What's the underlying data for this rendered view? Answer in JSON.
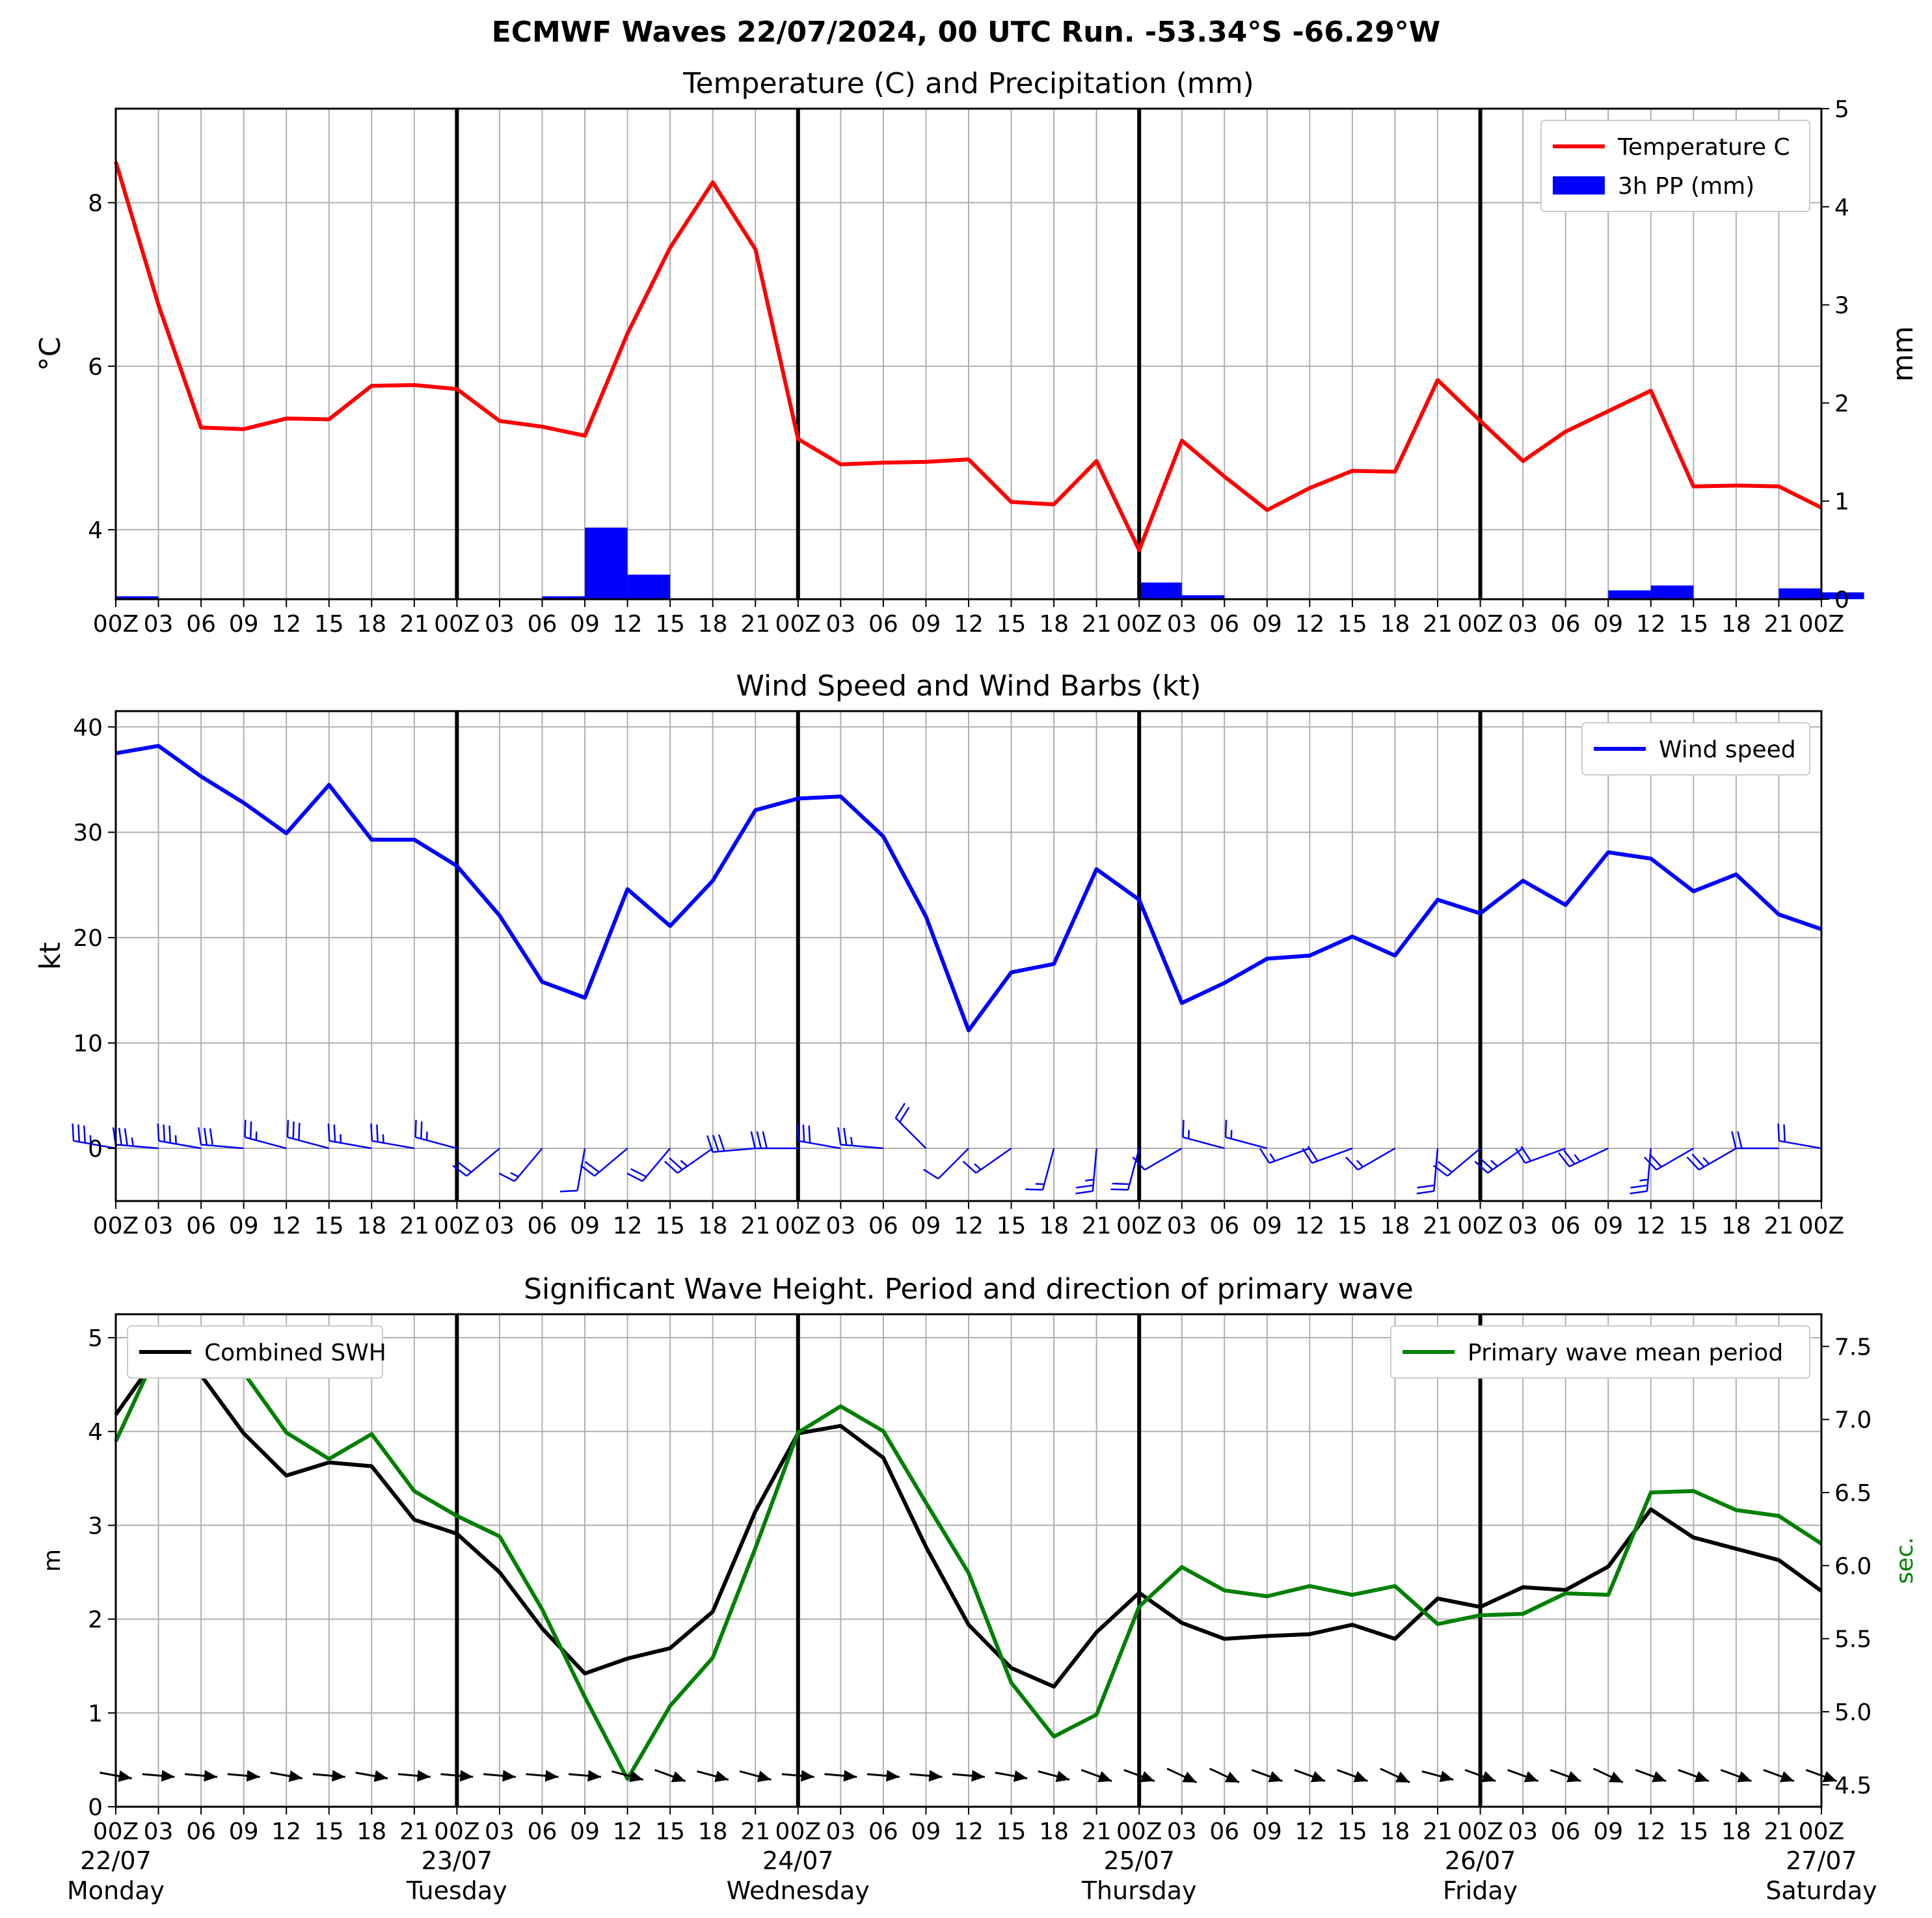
{
  "title": "ECMWF Waves 22/07/2024, 00 UTC Run. -53.34°S -66.29°W",
  "colors": {
    "temperature": "#ff0000",
    "precip": "#0000ff",
    "wind": "#0000ff",
    "swh": "#000000",
    "period": "#008000",
    "grid": "#b0b0b0",
    "day_line": "#000000"
  },
  "time_axis": {
    "tick_labels": [
      "00Z",
      "03",
      "06",
      "09",
      "12",
      "15",
      "18",
      "21",
      "00Z",
      "03",
      "06",
      "09",
      "12",
      "15",
      "18",
      "21",
      "00Z",
      "03",
      "06",
      "09",
      "12",
      "15",
      "18",
      "21",
      "00Z",
      "03",
      "06",
      "09",
      "12",
      "15",
      "18",
      "21",
      "00Z",
      "03",
      "06",
      "09",
      "12",
      "15",
      "18",
      "21",
      "00Z"
    ],
    "day_lines_at_hours": [
      24,
      48,
      72,
      96
    ],
    "dates": [
      {
        "hour": 0,
        "date": "22/07",
        "day": "Monday"
      },
      {
        "hour": 24,
        "date": "23/07",
        "day": "Tuesday"
      },
      {
        "hour": 48,
        "date": "24/07",
        "day": "Wednesday"
      },
      {
        "hour": 72,
        "date": "25/07",
        "day": "Thursday"
      },
      {
        "hour": 96,
        "date": "26/07",
        "day": "Friday"
      },
      {
        "hour": 120,
        "date": "27/07",
        "day": "Saturday"
      }
    ]
  },
  "chart_data": [
    {
      "type": "line",
      "title": "Temperature (C) and Precipitation (mm)",
      "ylabel": "°C",
      "y2label": "mm",
      "ylim": [
        3.15,
        9.15
      ],
      "yticks": [
        4,
        6,
        8
      ],
      "y2lim": [
        0,
        5
      ],
      "y2ticks": [
        0,
        1,
        2,
        3,
        4,
        5
      ],
      "xlim": [
        0,
        120
      ],
      "grid": true,
      "legend_position": "top-right",
      "x": [
        0,
        3,
        6,
        9,
        12,
        15,
        18,
        21,
        24,
        27,
        30,
        33,
        36,
        39,
        42,
        45,
        48,
        51,
        54,
        57,
        60,
        63,
        66,
        69,
        72,
        75,
        78,
        81,
        84,
        87,
        90,
        93,
        96,
        99,
        102,
        105,
        108,
        111,
        114,
        117,
        120
      ],
      "series": [
        {
          "name": "Temperature C",
          "type": "line",
          "axis": "left",
          "values": [
            8.5,
            6.75,
            5.25,
            5.23,
            5.36,
            5.35,
            5.76,
            5.77,
            5.72,
            5.33,
            5.26,
            5.15,
            6.4,
            7.45,
            8.25,
            7.43,
            5.11,
            4.8,
            4.82,
            4.83,
            4.86,
            4.34,
            4.31,
            4.84,
            3.75,
            5.09,
            4.65,
            4.24,
            4.51,
            4.72,
            4.71,
            5.83,
            5.33,
            4.84,
            5.2,
            5.45,
            5.7,
            4.53,
            4.54,
            4.53,
            4.27
          ]
        },
        {
          "name": "3h PP (mm)",
          "type": "bar",
          "axis": "right",
          "values": [
            0.03,
            0,
            0,
            0,
            0.01,
            0,
            0,
            0,
            0,
            0,
            0.03,
            0.73,
            0.25,
            0,
            0,
            0,
            0,
            0,
            0,
            0,
            0,
            0,
            0,
            0,
            0.17,
            0.04,
            0,
            0,
            0,
            0,
            0,
            0,
            0,
            0,
            0,
            0.09,
            0.14,
            0,
            0,
            0.11,
            0.07
          ]
        }
      ]
    },
    {
      "type": "line",
      "title": "Wind Speed and Wind Barbs (kt)",
      "ylabel": "kt",
      "ylim": [
        -5,
        41.5
      ],
      "yticks": [
        0,
        10,
        20,
        30,
        40
      ],
      "xlim": [
        0,
        120
      ],
      "grid": true,
      "legend_position": "top-right",
      "x": [
        0,
        3,
        6,
        9,
        12,
        15,
        18,
        21,
        24,
        27,
        30,
        33,
        36,
        39,
        42,
        45,
        48,
        51,
        54,
        57,
        60,
        63,
        66,
        69,
        72,
        75,
        78,
        81,
        84,
        87,
        90,
        93,
        96,
        99,
        102,
        105,
        108,
        111,
        114,
        117,
        120
      ],
      "series": [
        {
          "name": "Wind speed",
          "type": "line",
          "values": [
            37.5,
            38.2,
            35.3,
            32.8,
            29.9,
            34.5,
            29.3,
            29.3,
            26.8,
            22.1,
            15.8,
            14.3,
            24.6,
            21.1,
            25.4,
            32.1,
            33.2,
            33.4,
            29.6,
            22.0,
            11.2,
            16.7,
            17.5,
            26.5,
            23.6,
            13.8,
            15.7,
            18.0,
            18.3,
            20.1,
            18.3,
            23.6,
            22.3,
            25.4,
            23.1,
            28.1,
            27.5,
            24.4,
            26.0,
            22.2,
            20.8
          ]
        }
      ],
      "barb_directions_deg": [
        280,
        275,
        280,
        275,
        285,
        285,
        280,
        280,
        285,
        230,
        220,
        190,
        230,
        220,
        235,
        265,
        270,
        280,
        275,
        315,
        225,
        235,
        195,
        185,
        195,
        240,
        285,
        285,
        250,
        250,
        240,
        185,
        230,
        235,
        250,
        245,
        185,
        240,
        240,
        270,
        280
      ]
    },
    {
      "type": "line",
      "title": "Significant Wave Height. Period and direction of primary wave",
      "ylabel": "m",
      "y2label": "sec.",
      "ylim": [
        0,
        5.25
      ],
      "yticks": [
        0,
        1,
        2,
        3,
        4,
        5
      ],
      "y2lim": [
        4.35,
        7.72
      ],
      "y2ticks": [
        4.5,
        5.0,
        5.5,
        6.0,
        6.5,
        7.0,
        7.5
      ],
      "xlim": [
        0,
        120
      ],
      "grid": true,
      "x": [
        0,
        3,
        6,
        9,
        12,
        15,
        18,
        21,
        24,
        27,
        30,
        33,
        36,
        39,
        42,
        45,
        48,
        51,
        54,
        57,
        60,
        63,
        66,
        69,
        72,
        75,
        78,
        81,
        84,
        87,
        90,
        93,
        96,
        99,
        102,
        105,
        108,
        111,
        114,
        117,
        120
      ],
      "series": [
        {
          "name": "Combined SWH",
          "type": "line",
          "axis": "left",
          "legend_position": "top-left",
          "values": [
            4.18,
            4.82,
            4.6,
            3.98,
            3.53,
            3.67,
            3.63,
            3.06,
            2.91,
            2.5,
            1.9,
            1.42,
            1.58,
            1.69,
            2.08,
            3.15,
            3.98,
            4.06,
            3.72,
            2.77,
            1.94,
            1.48,
            1.28,
            1.86,
            2.28,
            1.96,
            1.79,
            1.82,
            1.84,
            1.94,
            1.79,
            2.22,
            2.13,
            2.34,
            2.31,
            2.56,
            3.17,
            2.87,
            2.75,
            2.63,
            2.3
          ]
        },
        {
          "name": "Primary wave mean period",
          "type": "line",
          "axis": "right",
          "legend_position": "top-right",
          "values": [
            6.85,
            7.48,
            7.55,
            7.32,
            6.91,
            6.73,
            6.9,
            6.51,
            6.34,
            6.2,
            5.7,
            5.1,
            4.54,
            5.04,
            5.37,
            6.12,
            6.91,
            7.09,
            6.92,
            6.43,
            5.95,
            5.2,
            4.83,
            4.98,
            5.72,
            5.99,
            5.83,
            5.79,
            5.86,
            5.8,
            5.86,
            5.6,
            5.66,
            5.67,
            5.81,
            5.8,
            6.5,
            6.51,
            6.38,
            6.34,
            6.15
          ]
        }
      ],
      "arrow_directions_deg": [
        100,
        95,
        95,
        95,
        100,
        95,
        100,
        95,
        95,
        95,
        95,
        95,
        105,
        110,
        105,
        105,
        95,
        95,
        95,
        95,
        95,
        100,
        105,
        110,
        110,
        115,
        115,
        110,
        110,
        110,
        115,
        105,
        110,
        110,
        110,
        115,
        110,
        110,
        110,
        110,
        110
      ]
    }
  ]
}
